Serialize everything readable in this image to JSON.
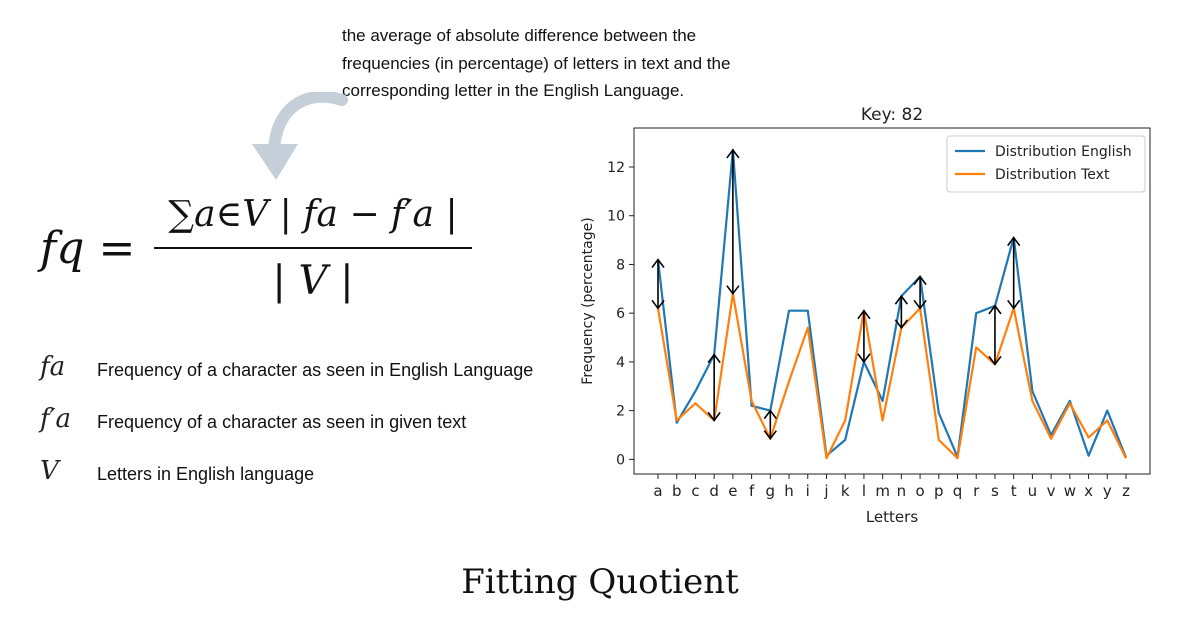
{
  "annotation": {
    "lines": [
      "the average of absolute difference between the",
      "frequencies (in percentage) of letters in text and the",
      "corresponding letter in the English Language."
    ]
  },
  "formula": {
    "lhs": "fq =",
    "numerator": "∑a∈V | fa − f′a |",
    "denominator": "| V |"
  },
  "definitions": [
    {
      "symbol": "fa",
      "text": "Frequency of a character as seen in English Language"
    },
    {
      "symbol": "f′a",
      "text": "Frequency of a character as seen in given text"
    },
    {
      "symbol": "V",
      "text": "Letters in English language"
    }
  ],
  "footer": {
    "title": "Fitting Quotient"
  },
  "chart_data": {
    "type": "line",
    "title": "Key: 82",
    "xlabel": "Letters",
    "ylabel": "Frequency (percentage)",
    "ylim": [
      -0.6,
      13.6
    ],
    "yticks": [
      0,
      2,
      4,
      6,
      8,
      10,
      12
    ],
    "categories": [
      "a",
      "b",
      "c",
      "d",
      "e",
      "f",
      "g",
      "h",
      "i",
      "j",
      "k",
      "l",
      "m",
      "n",
      "o",
      "p",
      "q",
      "r",
      "s",
      "t",
      "u",
      "v",
      "w",
      "x",
      "y",
      "z"
    ],
    "legend_position": "top-right",
    "grid": false,
    "series": [
      {
        "name": "Distribution English",
        "color": "#1f77b4",
        "values": [
          8.2,
          1.5,
          2.8,
          4.3,
          12.7,
          2.2,
          2.0,
          6.1,
          6.1,
          0.15,
          0.8,
          4.0,
          2.4,
          6.7,
          7.5,
          1.9,
          0.1,
          6.0,
          6.3,
          9.1,
          2.8,
          1.0,
          2.4,
          0.15,
          2.0,
          0.07
        ]
      },
      {
        "name": "Distribution Text",
        "color": "#ff7f0e",
        "values": [
          6.2,
          1.6,
          2.3,
          1.6,
          6.8,
          2.4,
          0.85,
          3.2,
          5.4,
          0.05,
          1.6,
          6.1,
          1.6,
          5.4,
          6.2,
          0.8,
          0.05,
          4.6,
          3.9,
          6.2,
          2.4,
          0.85,
          2.3,
          0.9,
          1.6,
          0.05
        ]
      }
    ],
    "difference_arrows": [
      "a",
      "d",
      "e",
      "g",
      "l",
      "n",
      "o",
      "s",
      "t"
    ]
  }
}
